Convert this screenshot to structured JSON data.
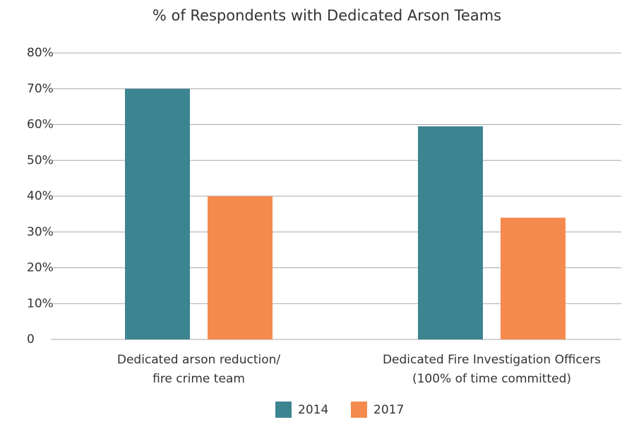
{
  "chart_data": {
    "type": "bar",
    "title": "% of Respondents with Dedicated Arson Teams",
    "categories": [
      [
        "Dedicated arson reduction/",
        "fire crime team"
      ],
      [
        "Dedicated Fire Investigation Officers",
        "(100% of time committed)"
      ]
    ],
    "series": [
      {
        "name": "2014",
        "color": "#3d8491",
        "values": [
          70,
          59.5
        ]
      },
      {
        "name": "2017",
        "color": "#f58a4e",
        "values": [
          40,
          34
        ]
      }
    ],
    "ylim": [
      0,
      80
    ],
    "yticks": [
      0,
      {
        "value": 10,
        "label": "10%"
      },
      {
        "value": 20,
        "label": "20%"
      },
      {
        "value": 30,
        "label": "30%"
      },
      {
        "value": 40,
        "label": "40%"
      },
      {
        "value": 50,
        "label": "50%"
      },
      {
        "value": 60,
        "label": "60%"
      },
      {
        "value": 70,
        "label": "70%"
      },
      {
        "value": 80,
        "label": "80%"
      }
    ],
    "grid": true,
    "legend": "bottom"
  }
}
